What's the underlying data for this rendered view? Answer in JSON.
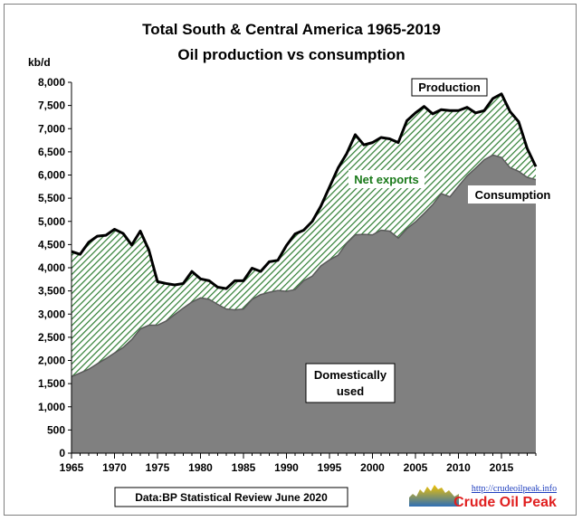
{
  "chart_data": {
    "type": "area",
    "title": "Total South & Central America  1965-2019",
    "subtitle": "Oil production vs consumption",
    "ylabel": "kb/d",
    "xlabel": "",
    "ylim": [
      0,
      8000
    ],
    "xlim": [
      1965,
      2019
    ],
    "y_ticks": [
      "0",
      "500",
      "1,000",
      "1,500",
      "2,000",
      "2,500",
      "3,000",
      "3,500",
      "4,000",
      "4,500",
      "5,000",
      "5,500",
      "6,000",
      "6,500",
      "7,000",
      "7,500",
      "8,000"
    ],
    "x_ticks": [
      "1965",
      "1970",
      "1975",
      "1980",
      "1985",
      "1990",
      "1995",
      "2000",
      "2005",
      "2010",
      "2015"
    ],
    "grid": false,
    "years": [
      1965,
      1966,
      1967,
      1968,
      1969,
      1970,
      1971,
      1972,
      1973,
      1974,
      1975,
      1976,
      1977,
      1978,
      1979,
      1980,
      1981,
      1982,
      1983,
      1984,
      1985,
      1986,
      1987,
      1988,
      1989,
      1990,
      1991,
      1992,
      1993,
      1994,
      1995,
      1996,
      1997,
      1998,
      1999,
      2000,
      2001,
      2002,
      2003,
      2004,
      2005,
      2006,
      2007,
      2008,
      2009,
      2010,
      2011,
      2012,
      2013,
      2014,
      2015,
      2016,
      2017,
      2018,
      2019
    ],
    "series": [
      {
        "name": "Production",
        "values": [
          4350,
          4290,
          4550,
          4680,
          4700,
          4830,
          4740,
          4490,
          4790,
          4380,
          3700,
          3660,
          3630,
          3660,
          3920,
          3760,
          3720,
          3580,
          3550,
          3720,
          3720,
          3990,
          3920,
          4130,
          4160,
          4480,
          4730,
          4810,
          5000,
          5330,
          5740,
          6150,
          6460,
          6870,
          6650,
          6700,
          6810,
          6780,
          6700,
          7170,
          7340,
          7480,
          7320,
          7410,
          7390,
          7390,
          7460,
          7340,
          7390,
          7650,
          7750,
          7370,
          7150,
          6570,
          6180
        ]
      },
      {
        "name": "Consumption",
        "values": [
          1650,
          1730,
          1810,
          1930,
          2040,
          2160,
          2280,
          2450,
          2680,
          2760,
          2760,
          2850,
          2990,
          3130,
          3260,
          3350,
          3320,
          3210,
          3110,
          3090,
          3110,
          3320,
          3420,
          3470,
          3510,
          3490,
          3530,
          3720,
          3820,
          4040,
          4170,
          4270,
          4530,
          4710,
          4720,
          4710,
          4810,
          4790,
          4640,
          4840,
          4990,
          5170,
          5360,
          5600,
          5530,
          5760,
          5980,
          6150,
          6330,
          6430,
          6380,
          6160,
          6080,
          5950,
          5900
        ]
      }
    ],
    "annotations": [
      "Net exports",
      "Domestically used"
    ],
    "colors": {
      "consumption_fill": "#808080",
      "hatch": "#2e7d32",
      "line": "#000000"
    }
  },
  "labels": {
    "production": "Production",
    "consumption": "Consumption",
    "net_exports": "Net exports",
    "domestic_1": "Domestically",
    "domestic_2": "used",
    "source": "Data:BP Statistical Review June 2020",
    "logo_url": "http://crudeoilpeak.info",
    "logo_name": "Crude Oil Peak"
  }
}
